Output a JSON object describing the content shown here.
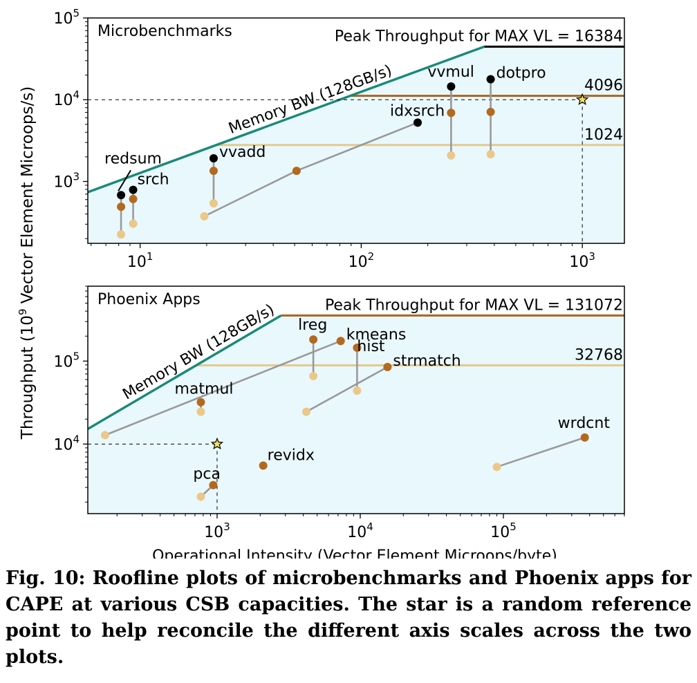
{
  "y_axis_label_main": "Throughput (10",
  "y_axis_label_exp": "9",
  "y_axis_label_rest": " Vector Element Microops/s)",
  "caption": "Fig. 10: Roofline plots of microbenchmarks and Phoenix apps for CAPE at various CSB capacities. The star is a random reference point to help reconcile the different axis scales across the two plots.",
  "colors": {
    "background": "#e9f8fd",
    "memory_bw": "#1a8a78",
    "peak_top": "#000000",
    "cap_mid": "#a8651f",
    "cap_low": "#e5c98c",
    "pt_black": "#000000",
    "pt_brown": "#b36a1e",
    "pt_light": "#ebc889",
    "connector": "#999999"
  },
  "chart_data": [
    {
      "type": "scatter",
      "title": "Microbenchmarks",
      "xlabel": "",
      "ylabel": "Throughput (10^9 Vector Element Microops/s)",
      "x_scale": "log",
      "y_scale": "log",
      "xlim": [
        5.8,
        1550
      ],
      "ylim": [
        175,
        100000
      ],
      "x_ticks": [
        {
          "value": 10,
          "base": "10",
          "exp": "1"
        },
        {
          "value": 100,
          "base": "10",
          "exp": "2"
        },
        {
          "value": 1000,
          "base": "10",
          "exp": "3"
        }
      ],
      "y_ticks": [
        {
          "value": 1000,
          "base": "10",
          "exp": "3"
        },
        {
          "value": 10000,
          "base": "10",
          "exp": "4"
        },
        {
          "value": 100000,
          "base": "10",
          "exp": "5"
        }
      ],
      "memory_bw": {
        "label": "Memory BW (128GB/s)",
        "from": [
          5.8,
          740
        ],
        "to": [
          360,
          44600
        ]
      },
      "roofs": [
        {
          "label": "Peak Throughput for MAX  VL = 16384",
          "value": 44600,
          "x_start": 360,
          "color": "peak_top"
        },
        {
          "label": "4096",
          "value": 11150,
          "x_start": 90,
          "color": "cap_mid"
        },
        {
          "label": "1024",
          "value": 2790,
          "x_start": 22,
          "color": "cap_low"
        }
      ],
      "reference_star": [
        1000,
        10000
      ],
      "series": [
        {
          "name": "redsum",
          "points": [
            {
              "x": 8.2,
              "y": 680,
              "cap": 16384
            },
            {
              "x": 8.2,
              "y": 490,
              "cap": 4096
            },
            {
              "x": 8.2,
              "y": 225,
              "cap": 1024
            }
          ]
        },
        {
          "name": "srch",
          "points": [
            {
              "x": 9.3,
              "y": 790,
              "cap": 16384
            },
            {
              "x": 9.3,
              "y": 610,
              "cap": 4096
            },
            {
              "x": 9.3,
              "y": 305,
              "cap": 1024
            }
          ]
        },
        {
          "name": "vvadd",
          "points": [
            {
              "x": 21.5,
              "y": 1920,
              "cap": 16384
            },
            {
              "x": 21.5,
              "y": 1350,
              "cap": 4096
            },
            {
              "x": 21.5,
              "y": 540,
              "cap": 1024
            }
          ]
        },
        {
          "name": "idxsrch",
          "points": [
            {
              "x": 180,
              "y": 5250,
              "cap": 16384
            },
            {
              "x": 51,
              "y": 1350,
              "cap": 4096
            },
            {
              "x": 19.5,
              "y": 375,
              "cap": 1024
            }
          ]
        },
        {
          "name": "vvmul",
          "points": [
            {
              "x": 255,
              "y": 14500,
              "cap": 16384
            },
            {
              "x": 255,
              "y": 6900,
              "cap": 4096
            },
            {
              "x": 255,
              "y": 2080,
              "cap": 1024
            }
          ]
        },
        {
          "name": "dotpro",
          "points": [
            {
              "x": 385,
              "y": 17800,
              "cap": 16384
            },
            {
              "x": 385,
              "y": 7100,
              "cap": 4096
            },
            {
              "x": 385,
              "y": 2150,
              "cap": 1024
            }
          ]
        }
      ]
    },
    {
      "type": "scatter",
      "title": "Phoenix Apps",
      "xlabel": "Operational Intensity (Vector Element Microops/byte)",
      "ylabel": "Throughput (10^9 Vector Element Microops/s)",
      "x_scale": "log",
      "y_scale": "log",
      "xlim": [
        125,
        700000
      ],
      "ylim": [
        1450,
        800000
      ],
      "x_ticks": [
        {
          "value": 1000,
          "base": "10",
          "exp": "3"
        },
        {
          "value": 10000,
          "base": "10",
          "exp": "4"
        },
        {
          "value": 100000,
          "base": "10",
          "exp": "5"
        }
      ],
      "y_ticks": [
        {
          "value": 10000,
          "base": "10",
          "exp": "4"
        },
        {
          "value": 100000,
          "base": "10",
          "exp": "5"
        }
      ],
      "memory_bw": {
        "label": "Memory BW (128GB/s)",
        "from": [
          125,
          15200
        ],
        "to": [
          2800,
          355000
        ]
      },
      "roofs": [
        {
          "label": "Peak Throughput for MAX  VL = 131072",
          "value": 355000,
          "x_start": 2800,
          "color": "cap_mid"
        },
        {
          "label": "32768",
          "value": 89000,
          "x_start": 700,
          "color": "cap_low"
        }
      ],
      "reference_star": [
        1000,
        10000
      ],
      "series": [
        {
          "name": "lreg",
          "points": [
            {
              "x": 4700,
              "y": 182000,
              "cap": 131072
            },
            {
              "x": 4700,
              "y": 66000,
              "cap": 32768
            }
          ]
        },
        {
          "name": "kmeans",
          "points": [
            {
              "x": 7300,
              "y": 175000,
              "cap": 131072
            },
            {
              "x": 165,
              "y": 12800,
              "cap": 32768
            }
          ]
        },
        {
          "name": "hist",
          "points": [
            {
              "x": 9500,
              "y": 145000,
              "cap": 131072
            },
            {
              "x": 9500,
              "y": 44000,
              "cap": 32768
            }
          ]
        },
        {
          "name": "strmatch",
          "points": [
            {
              "x": 15500,
              "y": 85000,
              "cap": 131072
            },
            {
              "x": 4200,
              "y": 24500,
              "cap": 32768
            }
          ]
        },
        {
          "name": "matmul",
          "points": [
            {
              "x": 770,
              "y": 32000,
              "cap": 131072
            },
            {
              "x": 770,
              "y": 24500,
              "cap": 32768
            }
          ]
        },
        {
          "name": "pca",
          "points": [
            {
              "x": 940,
              "y": 3200,
              "cap": 131072
            },
            {
              "x": 770,
              "y": 2320,
              "cap": 32768
            }
          ]
        },
        {
          "name": "revidx",
          "points": [
            {
              "x": 2100,
              "y": 5500,
              "cap": 131072
            }
          ]
        },
        {
          "name": "wrdcnt",
          "points": [
            {
              "x": 370000,
              "y": 12000,
              "cap": 131072
            },
            {
              "x": 90000,
              "y": 5300,
              "cap": 32768
            }
          ]
        }
      ]
    }
  ]
}
